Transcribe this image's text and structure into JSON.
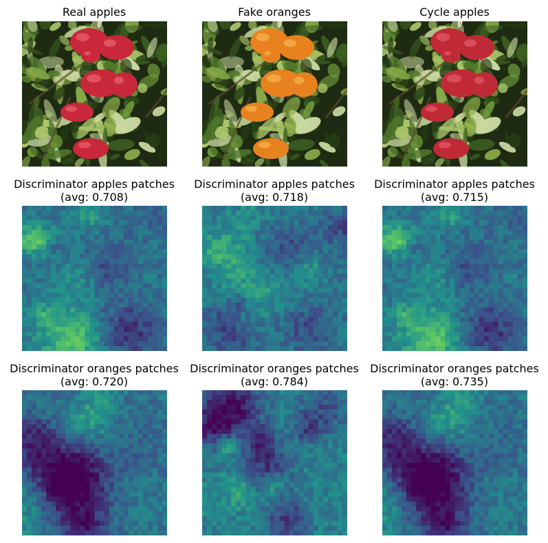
{
  "figure": {
    "rows": [
      {
        "panels": [
          {
            "title": "Real apples",
            "kind": "photo",
            "fruit_color": "#c8283a",
            "fruit_highlight": "#e8606a"
          },
          {
            "title": "Fake oranges",
            "kind": "photo",
            "fruit_color": "#e8821e",
            "fruit_highlight": "#f6b050"
          },
          {
            "title": "Cycle apples",
            "kind": "photo",
            "fruit_color": "#c02a36",
            "fruit_highlight": "#e05a66"
          }
        ]
      },
      {
        "panels": [
          {
            "title": "Discriminator apples patches",
            "avg_label": "(avg: 0.708)",
            "avg": 0.708,
            "kind": "heatmap",
            "seed": 11
          },
          {
            "title": "Discriminator apples patches",
            "avg_label": "(avg: 0.718)",
            "avg": 0.718,
            "kind": "heatmap",
            "seed": 23
          },
          {
            "title": "Discriminator apples patches",
            "avg_label": "(avg: 0.715)",
            "avg": 0.715,
            "kind": "heatmap",
            "seed": 11
          }
        ]
      },
      {
        "panels": [
          {
            "title": "Discriminator oranges patches",
            "avg_label": "(avg: 0.720)",
            "avg": 0.72,
            "kind": "heatmap",
            "seed": 37
          },
          {
            "title": "Discriminator oranges patches",
            "avg_label": "(avg: 0.784)",
            "avg": 0.784,
            "kind": "heatmap",
            "seed": 53
          },
          {
            "title": "Discriminator oranges patches",
            "avg_label": "(avg: 0.735)",
            "avg": 0.735,
            "kind": "heatmap",
            "seed": 37
          }
        ]
      }
    ],
    "colormap": [
      "#440154",
      "#3b528b",
      "#21918c",
      "#5ec962",
      "#fde725"
    ]
  }
}
